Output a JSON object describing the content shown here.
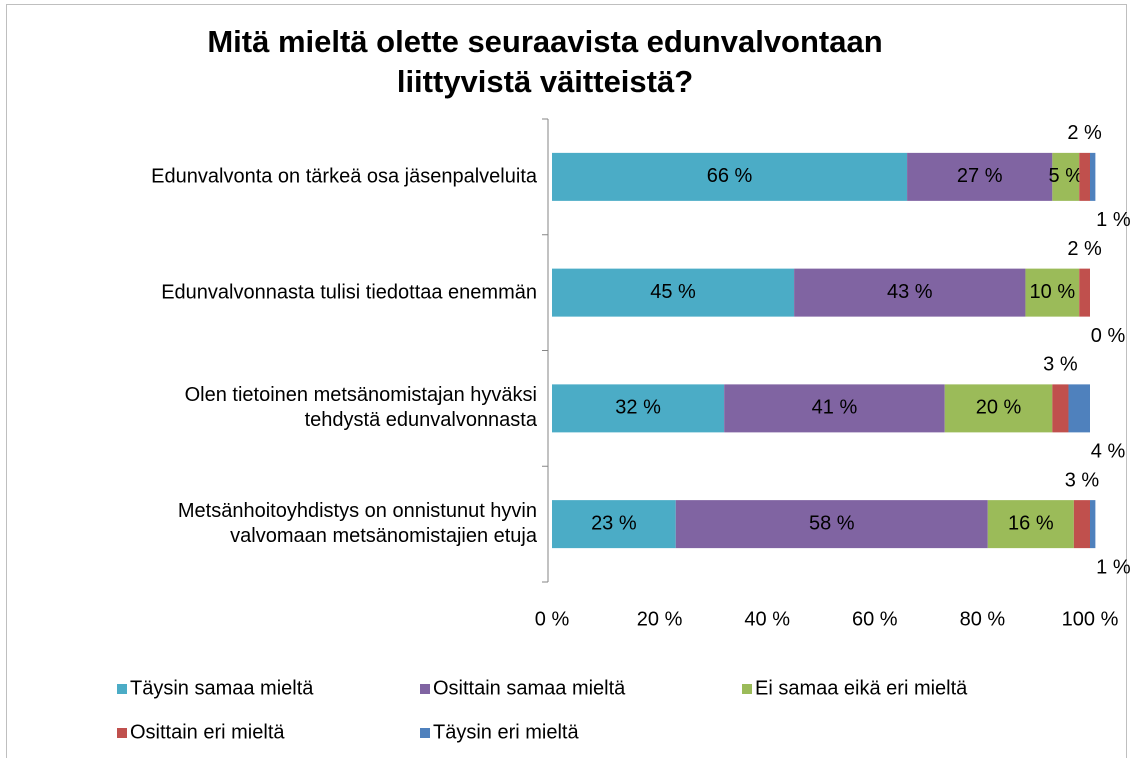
{
  "chart_data": {
    "type": "stacked-barh",
    "title": "Mitä mieltä olette seuraavista edunvalvontaan\nliittyvistä väitteistä?",
    "categories": [
      "Edunvalvonta on tärkeä osa jäsenpalveluita",
      "Edunvalvonnasta tulisi tiedottaa enemmän",
      "Olen tietoinen metsänomistajan hyväksi\ntehdystä edunvalvonnasta",
      "Metsänhoitoyhdistys on onnistunut hyvin\nvalvomaan metsänomistajien etuja"
    ],
    "series": [
      {
        "name": "Täysin samaa mieltä",
        "color": "#4bacc6",
        "values": [
          66,
          45,
          32,
          23
        ],
        "value_labels": [
          "66 %",
          "45 %",
          "32 %",
          "23 %"
        ]
      },
      {
        "name": "Osittain samaa mieltä",
        "color": "#8064a2",
        "values": [
          27,
          43,
          41,
          58
        ],
        "value_labels": [
          "27 %",
          "43 %",
          "41 %",
          "58 %"
        ]
      },
      {
        "name": "Ei samaa eikä eri mieltä",
        "color": "#9bbb59",
        "values": [
          5,
          10,
          20,
          16
        ],
        "value_labels": [
          "5 %",
          "10 %",
          "20 %",
          "16 %"
        ]
      },
      {
        "name": "Osittain eri mieltä",
        "color": "#c0504d",
        "values": [
          2,
          2,
          3,
          3
        ],
        "value_labels": [
          "2 %",
          "2 %",
          "3 %",
          "3 %"
        ]
      },
      {
        "name": "Täysin eri mieltä",
        "color": "#4f81bd",
        "values": [
          1,
          0,
          4,
          1
        ],
        "value_labels": [
          "1 %",
          "0 %",
          "4 %",
          "1 %"
        ]
      }
    ],
    "xlim": [
      0,
      100
    ],
    "xticks": [
      {
        "value": 0,
        "label": "0 %"
      },
      {
        "value": 20,
        "label": "20 %"
      },
      {
        "value": 40,
        "label": "40 %"
      },
      {
        "value": 60,
        "label": "60 %"
      },
      {
        "value": 80,
        "label": "80 %"
      },
      {
        "value": 100,
        "label": "100 %"
      }
    ],
    "legend": "bottom"
  }
}
